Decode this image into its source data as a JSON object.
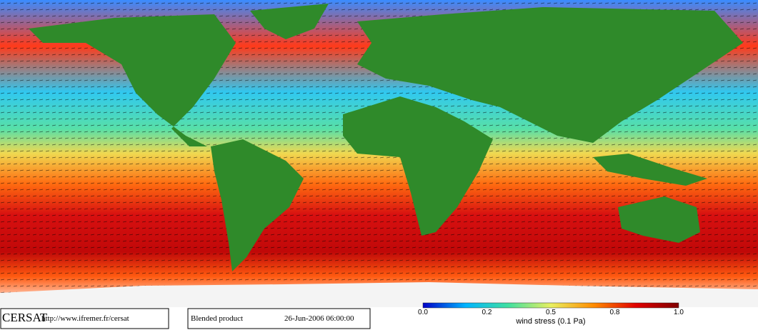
{
  "map": {
    "title": "CERSAT",
    "url": "http://www.ifremer.fr/cersat",
    "product": "Blended product",
    "date": "26-Jun-2006 06:00:00"
  },
  "colorbar": {
    "labels": [
      "0.0",
      "0.2",
      "0.5",
      "0.8",
      "1.0"
    ],
    "title": "wind stress (0.1 Pa)",
    "colors": [
      "#0000c8",
      "#00b4ff",
      "#40e0a0",
      "#e8f060",
      "#ff8c00",
      "#e00000",
      "#800000"
    ]
  }
}
